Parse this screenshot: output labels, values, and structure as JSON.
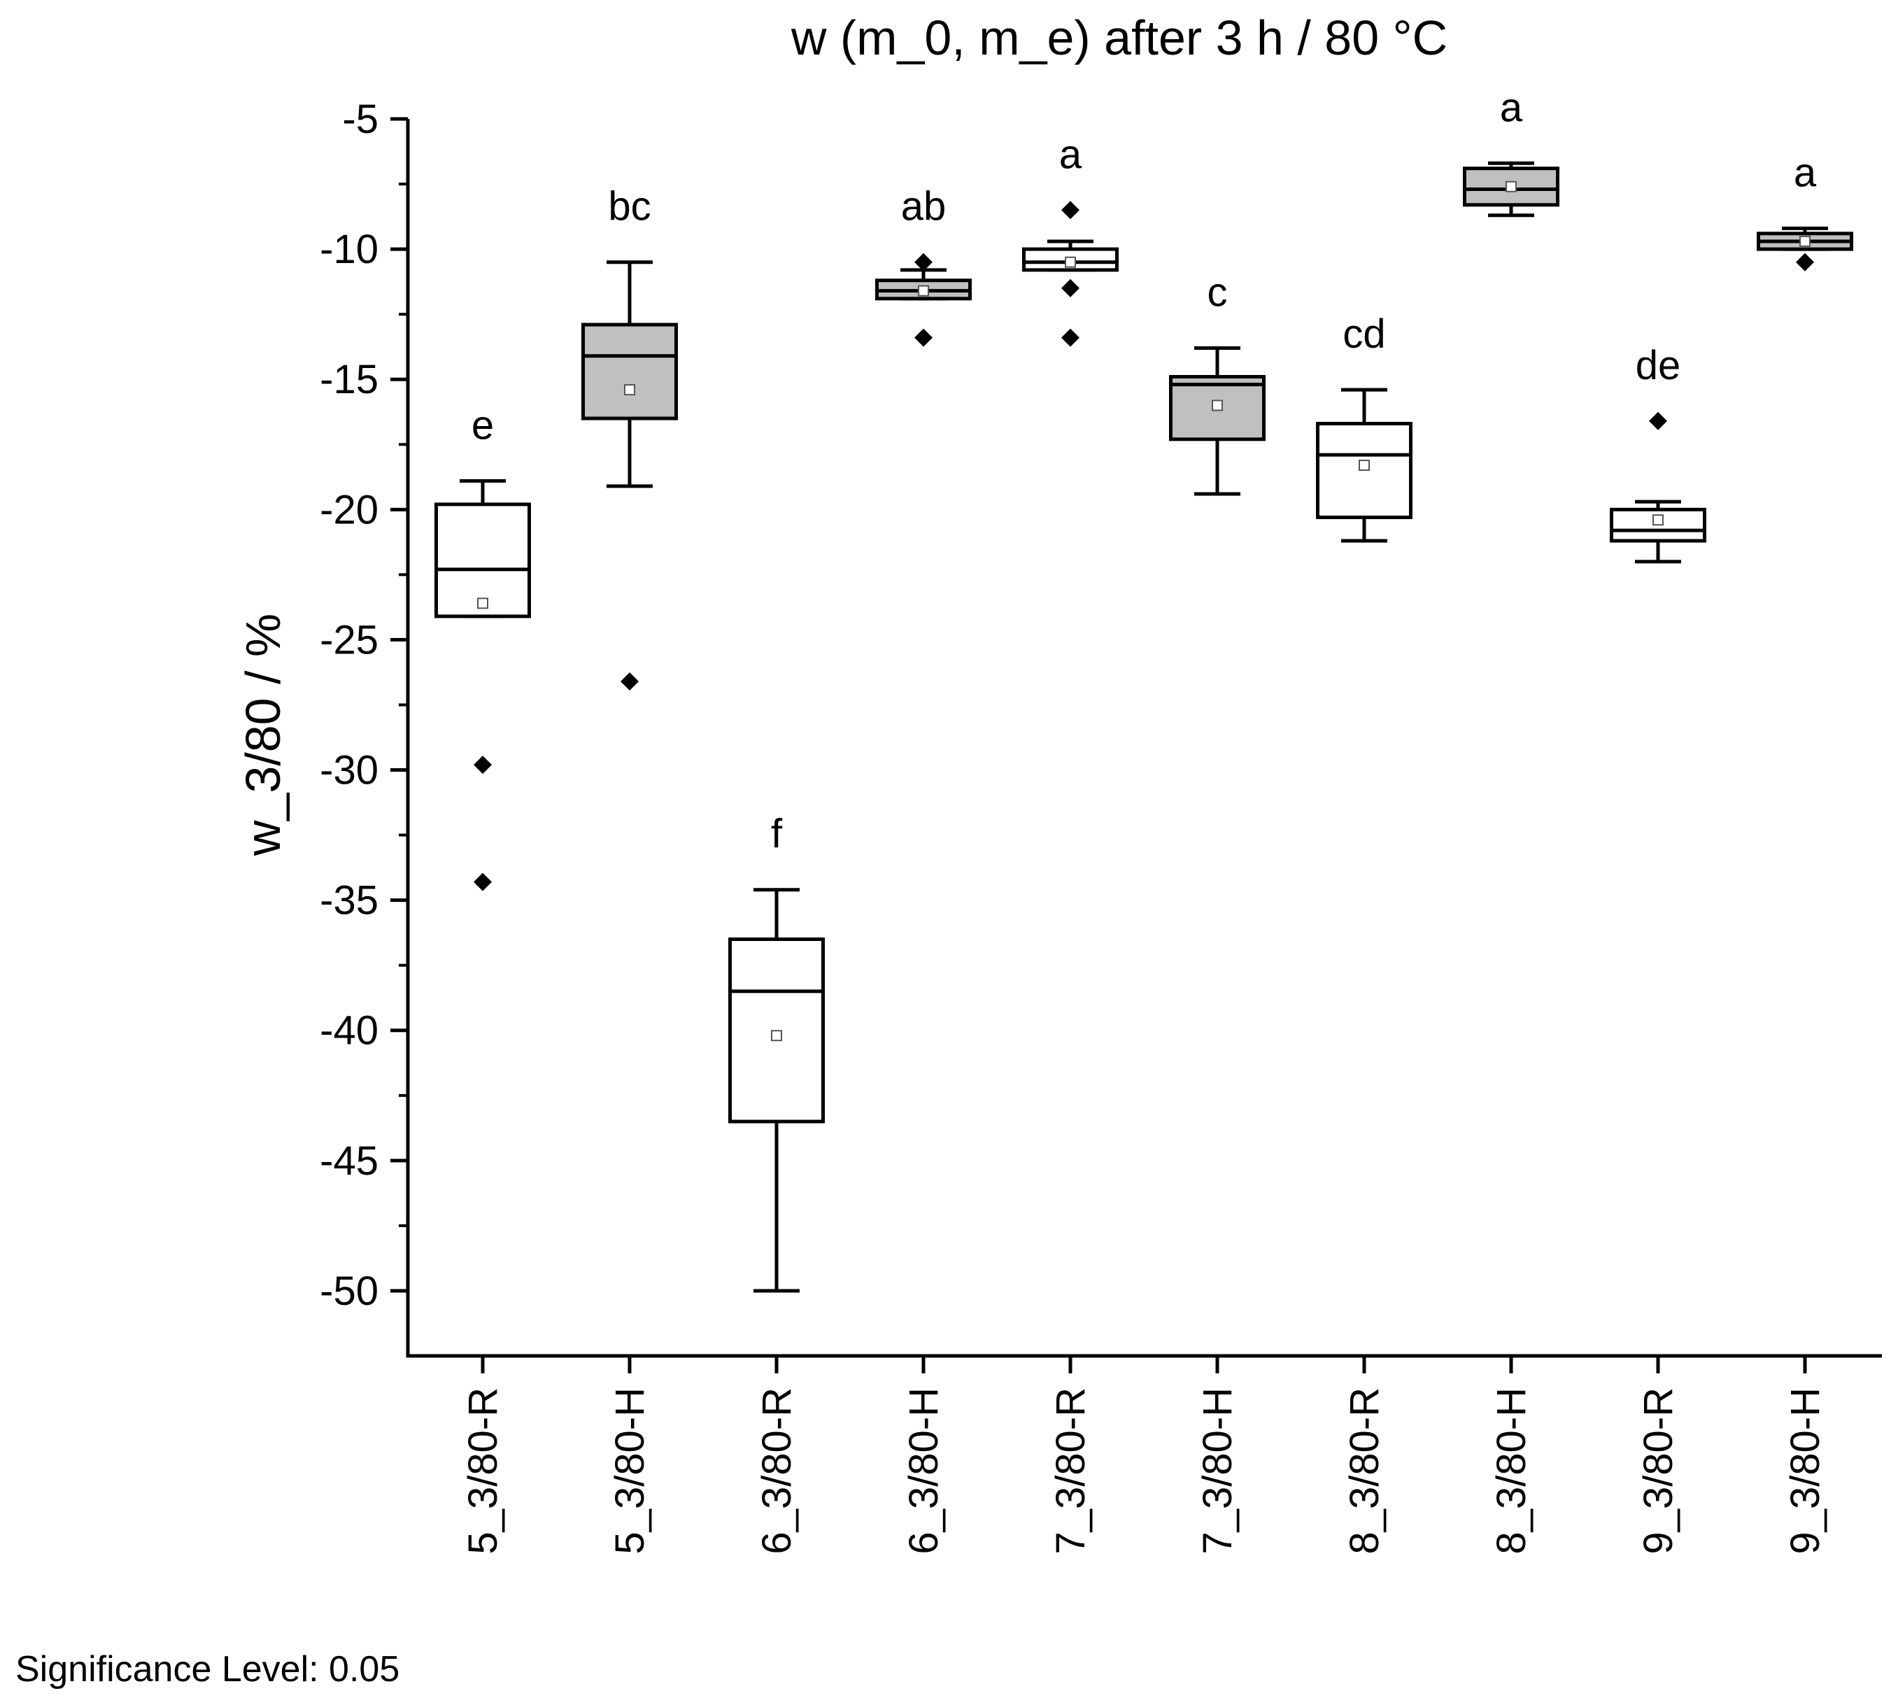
{
  "colors": {
    "filled": "#c0c0c0",
    "empty": "#ffffff",
    "stroke": "#000000"
  },
  "chart_data": {
    "type": "box",
    "title": "w (m_0, m_e) after 3 h / 80 °C",
    "xlabel": "",
    "ylabel": "w_3/80 / %",
    "ylim": [
      -52.5,
      -5
    ],
    "yticks": [
      -5,
      -10,
      -15,
      -20,
      -25,
      -30,
      -35,
      -40,
      -45,
      -50
    ],
    "yticks_minor": [
      -7.5,
      -12.5,
      -17.5,
      -22.5,
      -27.5,
      -32.5,
      -37.5,
      -42.5,
      -47.5
    ],
    "grid": false,
    "categories": [
      "5_3/80-R",
      "5_3/80-H",
      "6_3/80-R",
      "6_3/80-H",
      "7_3/80-R",
      "7_3/80-H",
      "8_3/80-R",
      "8_3/80-H",
      "9_3/80-R",
      "9_3/80-H"
    ],
    "boxes": [
      {
        "q1": -24.1,
        "median": -22.3,
        "q3": -19.8,
        "whisker_low": -24.1,
        "whisker_high": -18.9,
        "mean": -23.6,
        "outliers": [
          -29.8,
          -34.3
        ],
        "filled": false,
        "group": "e"
      },
      {
        "q1": -16.5,
        "median": -14.1,
        "q3": -12.9,
        "whisker_low": -19.1,
        "whisker_high": -10.5,
        "mean": -15.4,
        "outliers": [
          -26.6
        ],
        "filled": true,
        "group": "bc"
      },
      {
        "q1": -43.5,
        "median": -38.5,
        "q3": -36.5,
        "whisker_low": -50.0,
        "whisker_high": -34.6,
        "mean": -40.2,
        "outliers": [],
        "filled": false,
        "group": "f"
      },
      {
        "q1": -11.9,
        "median": -11.6,
        "q3": -11.2,
        "whisker_low": -11.9,
        "whisker_high": -10.8,
        "mean": -11.6,
        "outliers": [
          -10.5,
          -13.4
        ],
        "filled": true,
        "group": "ab"
      },
      {
        "q1": -10.8,
        "median": -10.5,
        "q3": -10.0,
        "whisker_low": -10.8,
        "whisker_high": -9.7,
        "mean": -10.5,
        "outliers": [
          -8.5,
          -11.5,
          -13.4
        ],
        "filled": false,
        "group": "a"
      },
      {
        "q1": -17.3,
        "median": -15.2,
        "q3": -14.9,
        "whisker_low": -19.4,
        "whisker_high": -13.8,
        "mean": -16.0,
        "outliers": [],
        "filled": true,
        "group": "c"
      },
      {
        "q1": -20.3,
        "median": -17.9,
        "q3": -16.7,
        "whisker_low": -21.2,
        "whisker_high": -15.4,
        "mean": -18.3,
        "outliers": [],
        "filled": false,
        "group": "cd"
      },
      {
        "q1": -8.3,
        "median": -7.7,
        "q3": -6.9,
        "whisker_low": -8.7,
        "whisker_high": -6.7,
        "mean": -7.6,
        "outliers": [],
        "filled": true,
        "group": "a"
      },
      {
        "q1": -21.2,
        "median": -20.8,
        "q3": -20.0,
        "whisker_low": -22.0,
        "whisker_high": -19.7,
        "mean": -20.4,
        "outliers": [
          -16.6
        ],
        "filled": false,
        "group": "de"
      },
      {
        "q1": -10.0,
        "median": -9.7,
        "q3": -9.4,
        "whisker_low": -10.0,
        "whisker_high": -9.2,
        "mean": -9.7,
        "outliers": [
          -10.5
        ],
        "filled": true,
        "group": "a"
      }
    ]
  },
  "footnote": "Significance Level: 0.05"
}
